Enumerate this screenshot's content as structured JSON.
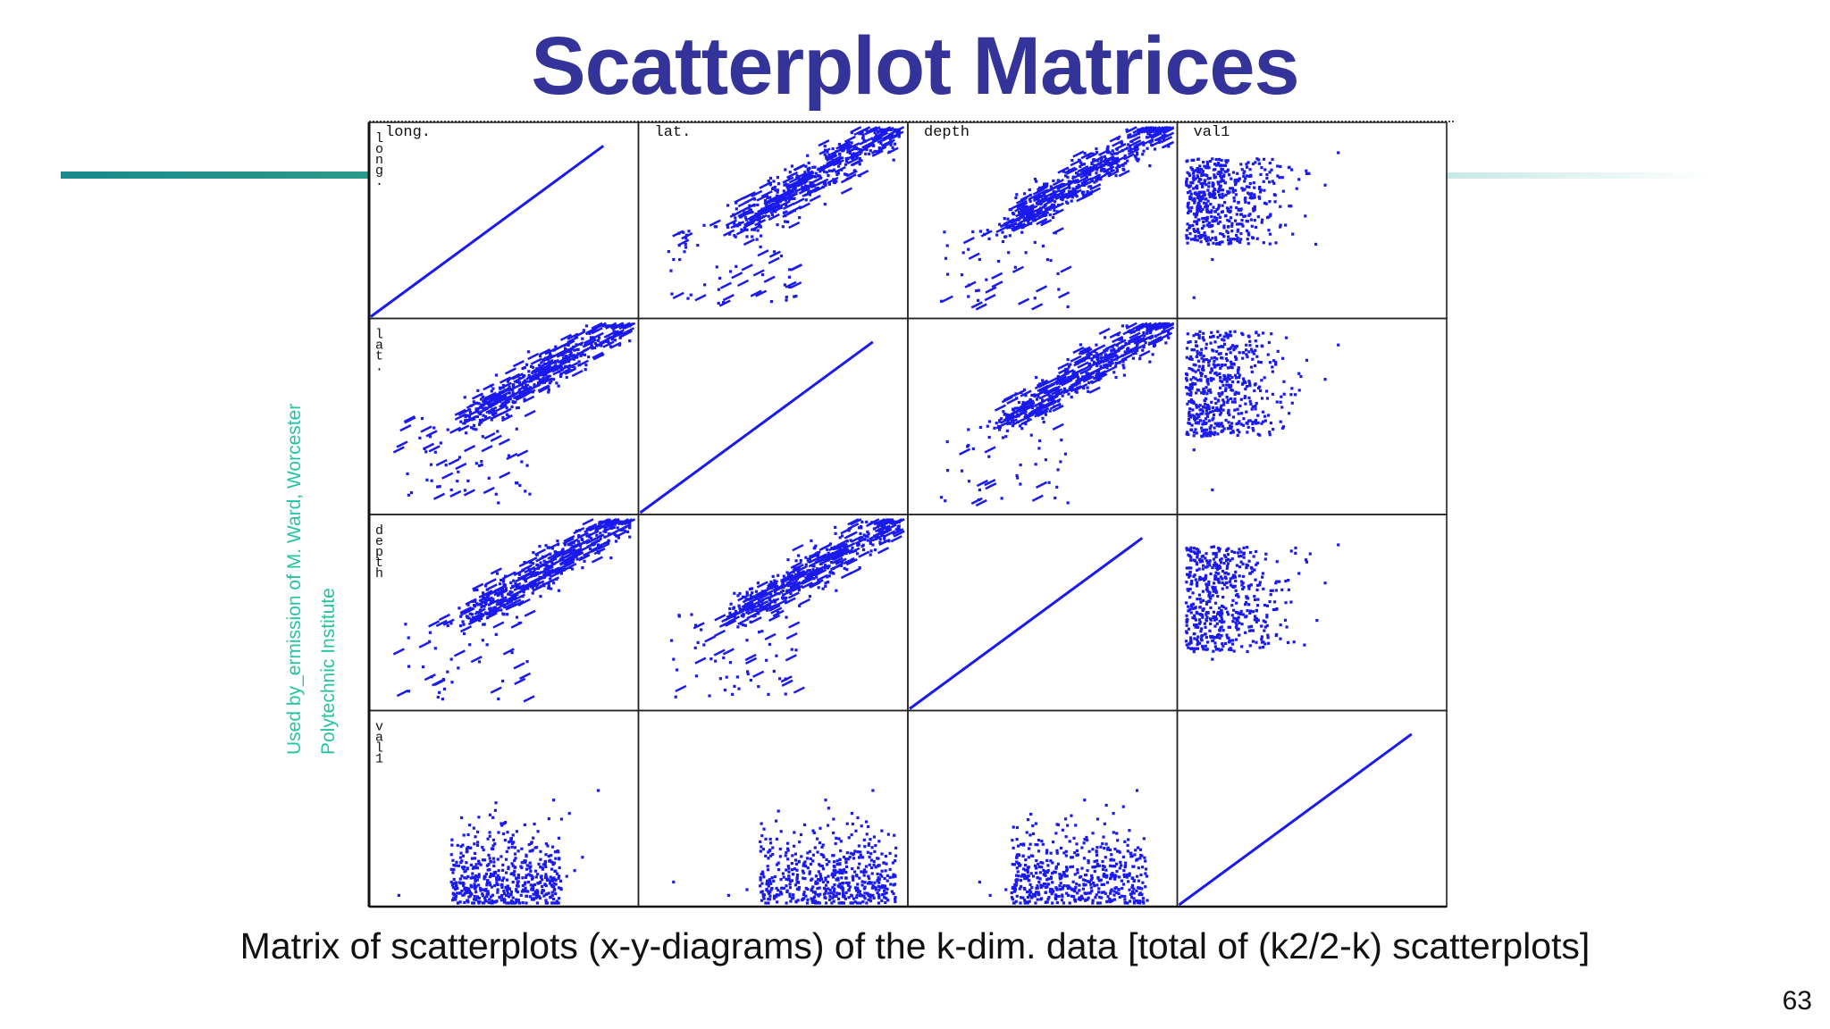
{
  "slide": {
    "title": "Scatterplot Matrices",
    "credit_line1": "Used by_ermission of M. Ward, Worcester",
    "credit_line2": "Polytechnic Institute",
    "caption": "Matrix of scatterplots (x-y-diagrams) of the k-dim. data [total of (k2/2-k) scatterplots]",
    "page_number": "63",
    "colors": {
      "title": "#333399",
      "points": "#1a1aee",
      "credit": "#22c4a4",
      "rule": "#1a8a8a"
    }
  },
  "chart_data": {
    "type": "scatter",
    "variables": [
      "long.",
      "lat.",
      "depth",
      "val1"
    ],
    "grid": false,
    "title": "",
    "samples": {
      "long.": [
        0.66,
        0.71,
        0.74,
        0.58,
        0.8,
        0.55,
        0.62,
        0.69,
        0.77,
        0.48,
        0.64,
        0.72,
        0.1,
        0.3,
        0.52,
        0.6,
        0.86,
        0.68,
        0.75,
        0.42
      ],
      "lat.": [
        0.78,
        0.74,
        0.71,
        0.62,
        0.83,
        0.55,
        0.66,
        0.7,
        0.76,
        0.58,
        0.64,
        0.73,
        0.33,
        0.12,
        0.6,
        0.52,
        0.88,
        0.69,
        0.8,
        0.4
      ],
      "depth": [
        0.7,
        0.62,
        0.78,
        0.56,
        0.74,
        0.48,
        0.65,
        0.66,
        0.81,
        0.44,
        0.59,
        0.71,
        0.3,
        0.26,
        0.54,
        0.5,
        0.86,
        0.63,
        0.77,
        0.36
      ],
      "val1": [
        0.2,
        0.35,
        0.15,
        0.42,
        0.25,
        0.1,
        0.3,
        0.55,
        0.18,
        0.38,
        0.28,
        0.45,
        0.05,
        0.12,
        0.33,
        0.22,
        0.6,
        0.26,
        0.48,
        0.08
      ]
    }
  }
}
